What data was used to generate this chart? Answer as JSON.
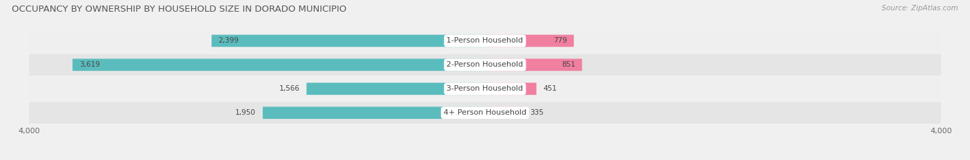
{
  "title": "OCCUPANCY BY OWNERSHIP BY HOUSEHOLD SIZE IN DORADO MUNICIPIO",
  "source": "Source: ZipAtlas.com",
  "categories": [
    "1-Person Household",
    "2-Person Household",
    "3-Person Household",
    "4+ Person Household"
  ],
  "owner_values": [
    2399,
    3619,
    1566,
    1950
  ],
  "renter_values": [
    779,
    851,
    451,
    335
  ],
  "owner_color": "#5bbcbd",
  "renter_color": "#f07fa0",
  "axis_max": 4000,
  "title_fontsize": 9.5,
  "source_fontsize": 7.5,
  "tick_fontsize": 8,
  "category_fontsize": 8,
  "value_fontsize": 7.5,
  "row_colors": [
    "#efefef",
    "#e5e5e5"
  ],
  "bg_color": "#f0f0f0"
}
